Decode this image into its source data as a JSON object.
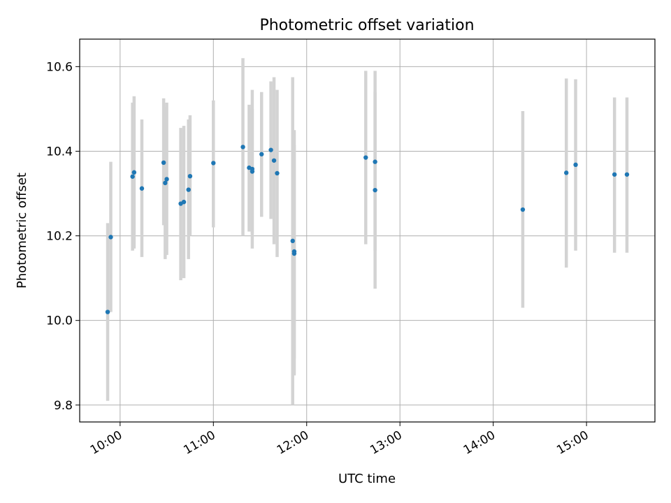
{
  "chart_data": {
    "type": "scatter",
    "title": "Photometric offset variation",
    "xlabel": "UTC time",
    "ylabel": "Photometric offset",
    "x_ticks": [
      "10:00",
      "11:00",
      "12:00",
      "13:00",
      "14:00",
      "15:00"
    ],
    "y_ticks": [
      "9.8",
      "10.0",
      "10.2",
      "10.4",
      "10.6"
    ],
    "xlim": [
      "09:34",
      "15:44"
    ],
    "ylim": [
      9.76,
      10.665
    ],
    "grid": true,
    "marker_color": "#1f77b4",
    "errorbar_color": "#d3d3d3",
    "series": [
      {
        "points": [
          {
            "x": "09:52",
            "y": 10.02,
            "yerr_low": 9.81,
            "yerr_high": 10.23
          },
          {
            "x": "09:54",
            "y": 10.197,
            "yerr_low": 10.02,
            "yerr_high": 10.375
          },
          {
            "x": "10:08",
            "y": 10.34,
            "yerr_low": 10.165,
            "yerr_high": 10.515
          },
          {
            "x": "10:09",
            "y": 10.35,
            "yerr_low": 10.17,
            "yerr_high": 10.53
          },
          {
            "x": "10:14",
            "y": 10.312,
            "yerr_low": 10.15,
            "yerr_high": 10.475
          },
          {
            "x": "10:28",
            "y": 10.373,
            "yerr_low": 10.225,
            "yerr_high": 10.525
          },
          {
            "x": "10:29",
            "y": 10.325,
            "yerr_low": 10.145,
            "yerr_high": 10.505
          },
          {
            "x": "10:30",
            "y": 10.334,
            "yerr_low": 10.155,
            "yerr_high": 10.515
          },
          {
            "x": "10:39",
            "y": 10.276,
            "yerr_low": 10.095,
            "yerr_high": 10.455
          },
          {
            "x": "10:41",
            "y": 10.28,
            "yerr_low": 10.1,
            "yerr_high": 10.46
          },
          {
            "x": "10:44",
            "y": 10.309,
            "yerr_low": 10.145,
            "yerr_high": 10.475
          },
          {
            "x": "10:45",
            "y": 10.341,
            "yerr_low": 10.2,
            "yerr_high": 10.485
          },
          {
            "x": "11:00",
            "y": 10.372,
            "yerr_low": 10.22,
            "yerr_high": 10.52
          },
          {
            "x": "11:19",
            "y": 10.41,
            "yerr_low": 10.2,
            "yerr_high": 10.62
          },
          {
            "x": "11:23",
            "y": 10.361,
            "yerr_low": 10.21,
            "yerr_high": 10.51
          },
          {
            "x": "11:25",
            "y": 10.358,
            "yerr_low": 10.17,
            "yerr_high": 10.545
          },
          {
            "x": "11:25",
            "y": 10.352,
            "yerr_low": 10.205,
            "yerr_high": 10.5
          },
          {
            "x": "11:31",
            "y": 10.393,
            "yerr_low": 10.245,
            "yerr_high": 10.54
          },
          {
            "x": "11:37",
            "y": 10.403,
            "yerr_low": 10.24,
            "yerr_high": 10.565
          },
          {
            "x": "11:39",
            "y": 10.378,
            "yerr_low": 10.18,
            "yerr_high": 10.575
          },
          {
            "x": "11:41",
            "y": 10.348,
            "yerr_low": 10.15,
            "yerr_high": 10.545
          },
          {
            "x": "11:51",
            "y": 10.188,
            "yerr_low": 9.8,
            "yerr_high": 10.575
          },
          {
            "x": "11:52",
            "y": 10.163,
            "yerr_low": 9.87,
            "yerr_high": 10.45
          },
          {
            "x": "11:52",
            "y": 10.158,
            "yerr_low": 9.91,
            "yerr_high": 10.415
          },
          {
            "x": "12:38",
            "y": 10.385,
            "yerr_low": 10.18,
            "yerr_high": 10.59
          },
          {
            "x": "12:44",
            "y": 10.375,
            "yerr_low": 10.165,
            "yerr_high": 10.59
          },
          {
            "x": "12:44",
            "y": 10.308,
            "yerr_low": 10.075,
            "yerr_high": 10.54
          },
          {
            "x": "14:19",
            "y": 10.262,
            "yerr_low": 10.03,
            "yerr_high": 10.495
          },
          {
            "x": "14:47",
            "y": 10.349,
            "yerr_low": 10.125,
            "yerr_high": 10.572
          },
          {
            "x": "14:53",
            "y": 10.368,
            "yerr_low": 10.165,
            "yerr_high": 10.57
          },
          {
            "x": "15:18",
            "y": 10.345,
            "yerr_low": 10.16,
            "yerr_high": 10.527
          },
          {
            "x": "15:26",
            "y": 10.345,
            "yerr_low": 10.16,
            "yerr_high": 10.527
          }
        ]
      }
    ]
  }
}
